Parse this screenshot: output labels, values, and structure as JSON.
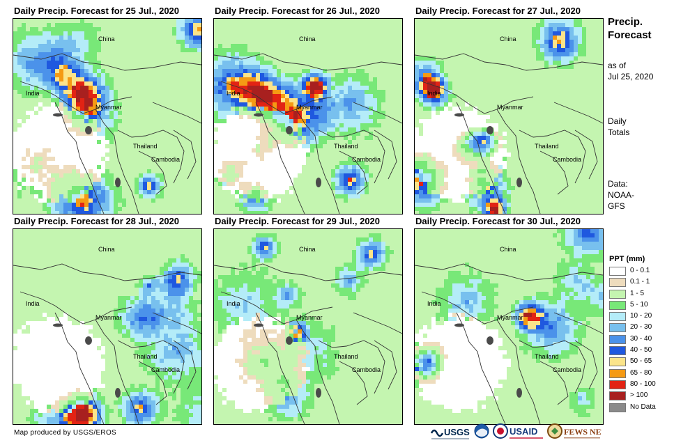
{
  "panels": [
    {
      "title": "Daily Precip. Forecast for 25 Jul., 2020",
      "seed": 11
    },
    {
      "title": "Daily Precip. Forecast for 26 Jul., 2020",
      "seed": 23
    },
    {
      "title": "Daily Precip. Forecast for 27 Jul., 2020",
      "seed": 37
    },
    {
      "title": "Daily Precip. Forecast for 28 Jul., 2020",
      "seed": 41
    },
    {
      "title": "Daily Precip. Forecast for 29 Jul., 2020",
      "seed": 53
    },
    {
      "title": "Daily Precip. Forecast for 30 Jul., 2020",
      "seed": 67
    }
  ],
  "map_labels": {
    "china": "China",
    "india": "India",
    "myanmar": "Myanmar",
    "thailand": "Thailand",
    "cambodia": "Cambodia"
  },
  "sidebar": {
    "title_line1": "Precip.",
    "title_line2": "Forecast",
    "asof_line1": "as of",
    "asof_line2": "Jul 25, 2020",
    "totals_line1": "Daily",
    "totals_line2": "Totals",
    "data_line1": "Data:",
    "data_line2": "NOAA-",
    "data_line3": "GFS"
  },
  "legend": {
    "title": "PPT (mm)",
    "items": [
      {
        "label": "0 - 0.1",
        "color": "#ffffff"
      },
      {
        "label": "0.1 - 1",
        "color": "#eedcbd"
      },
      {
        "label": "1 - 5",
        "color": "#c4f5b0"
      },
      {
        "label": "5 - 10",
        "color": "#78e878"
      },
      {
        "label": "10 - 20",
        "color": "#b4ecf8"
      },
      {
        "label": "20 - 30",
        "color": "#78c0ee"
      },
      {
        "label": "30 - 40",
        "color": "#4b92ea"
      },
      {
        "label": "40 - 50",
        "color": "#1f58df"
      },
      {
        "label": "50 - 65",
        "color": "#fbe48a"
      },
      {
        "label": "65 - 80",
        "color": "#f59a14"
      },
      {
        "label": "80 - 100",
        "color": "#e22314"
      },
      {
        "label": "> 100",
        "color": "#a8201f"
      },
      {
        "label": "No Data",
        "color": "#8a8a8a"
      }
    ]
  },
  "credit": "Map produced by USGS/EROS",
  "logos": {
    "usgs": "USGS",
    "usaid": "USAID",
    "fewsnet": "FEWS NET"
  }
}
